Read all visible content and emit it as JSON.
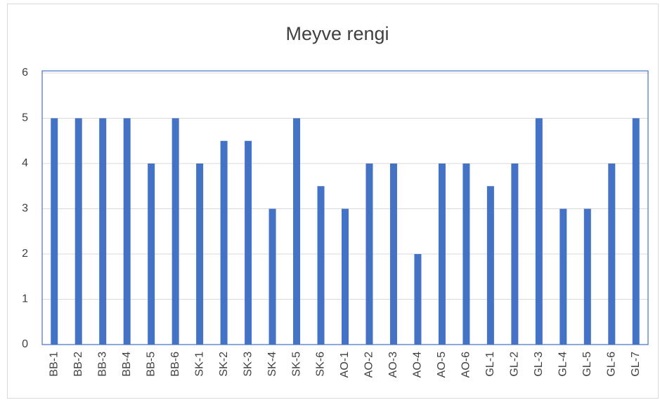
{
  "chart_data": {
    "type": "bar",
    "title": "Meyve rengi",
    "categories": [
      "BB-1",
      "BB-2",
      "BB-3",
      "BB-4",
      "BB-5",
      "BB-6",
      "SK-1",
      "SK-2",
      "SK-3",
      "SK-4",
      "SK-5",
      "SK-6",
      "AO-1",
      "AO-2",
      "AO-3",
      "AO-4",
      "AO-5",
      "AO-6",
      "GL-1",
      "GL-2",
      "GL-3",
      "GL-4",
      "GL-5",
      "GL-6",
      "GL-7"
    ],
    "values": [
      5,
      5,
      5,
      5,
      4,
      5,
      4,
      4.5,
      4.5,
      3,
      5,
      3.5,
      3,
      4,
      4,
      2,
      4,
      4,
      3.5,
      4,
      5,
      3,
      3,
      4,
      5
    ],
    "color": "#4472c4",
    "ylim": [
      0,
      6
    ],
    "yticks": [
      0,
      1,
      2,
      3,
      4,
      5,
      6
    ],
    "grid": true
  }
}
